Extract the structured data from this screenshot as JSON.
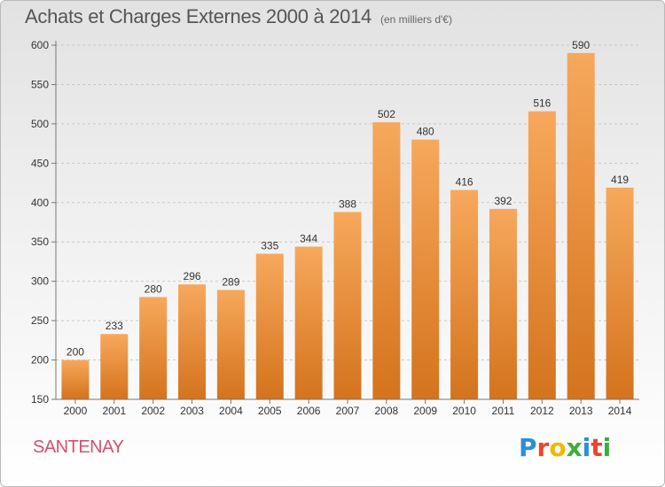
{
  "header": {
    "title": "Achats et Charges Externes 2000 à 2014",
    "subtitle": "(en milliers d'€)"
  },
  "footer": {
    "commune": "SANTENAY",
    "logo_letters": [
      "P",
      "r",
      "o",
      "x",
      "i",
      "t",
      "i"
    ],
    "logo_colors": [
      "#2b8fd6",
      "#e8452f",
      "#f2b705",
      "#3cae3a",
      "#2b8fd6",
      "#e8452f",
      "#3cae3a"
    ]
  },
  "colors": {
    "bar_top": "#f7a85c",
    "bar_bottom": "#d4731c",
    "grid": "#c9c9c9",
    "axis": "#777777",
    "label": "#333333"
  },
  "chart_data": {
    "type": "bar",
    "categories": [
      "2000",
      "2001",
      "2002",
      "2003",
      "2004",
      "2005",
      "2006",
      "2007",
      "2008",
      "2009",
      "2010",
      "2011",
      "2012",
      "2013",
      "2014"
    ],
    "values": [
      200,
      233,
      280,
      296,
      289,
      335,
      344,
      388,
      502,
      480,
      416,
      392,
      516,
      590,
      419
    ],
    "ylim": [
      150,
      600
    ],
    "yticks": [
      150,
      200,
      250,
      300,
      350,
      400,
      450,
      500,
      550,
      600
    ],
    "grid": "horizontal dashed"
  }
}
